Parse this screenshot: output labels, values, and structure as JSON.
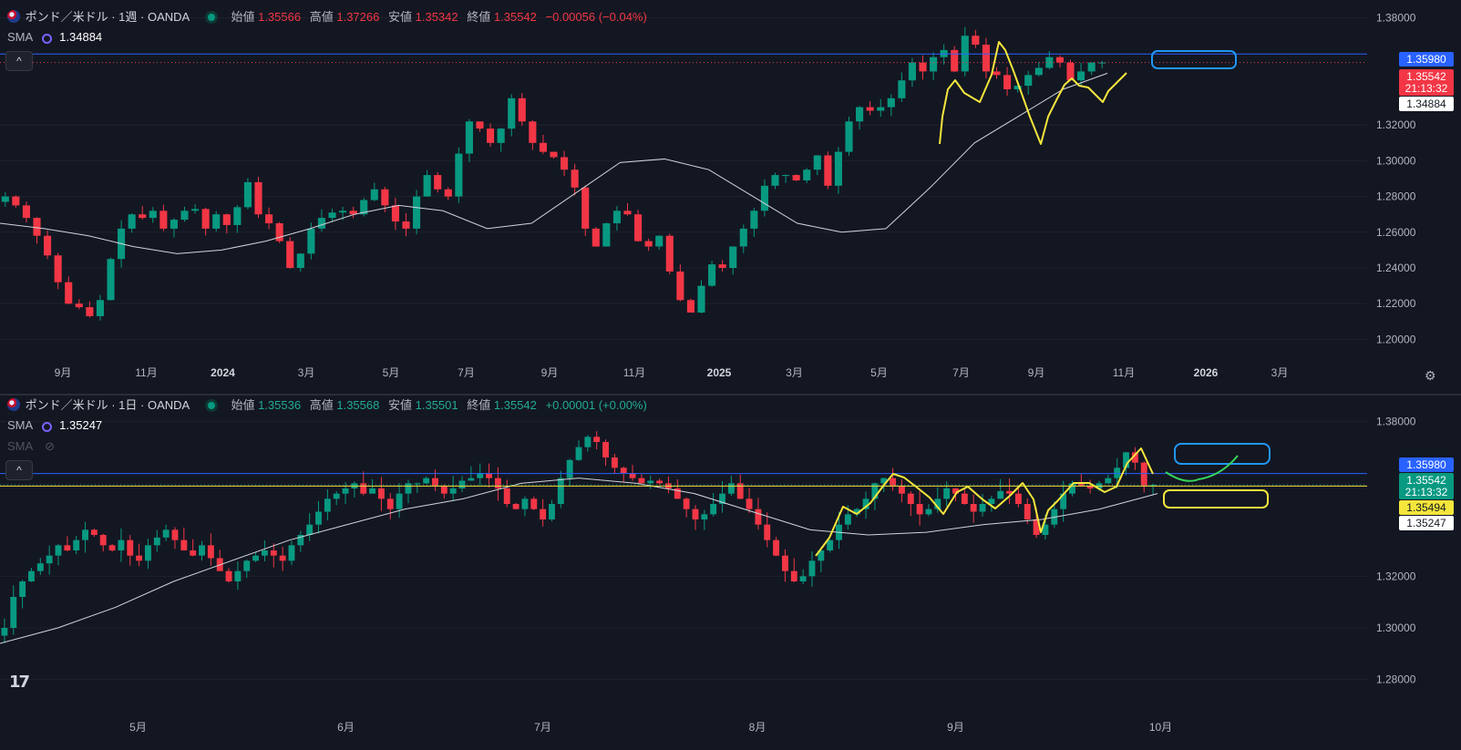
{
  "colors": {
    "up": "#089981",
    "down": "#f23645",
    "bg": "#131722",
    "grid": "#1e222d",
    "axis": "#b2b5be",
    "sma": "#d1d4dc",
    "yellowline": "#f0e23a",
    "blueline": "#2962ff",
    "bluebox": "#2196f3",
    "yellowbox": "#f5e63c",
    "greenline": "#36d35b"
  },
  "top": {
    "symbol": "ポンド／米ドル · 1週 · OANDA",
    "ohlc": {
      "open_k": "始値",
      "open": "1.35566",
      "high_k": "高値",
      "high": "1.37266",
      "low_k": "安値",
      "low": "1.35342",
      "close_k": "終値",
      "close": "1.35542",
      "change": "−0.00056 (−0.04%)"
    },
    "sma_label": "SMA",
    "sma_value": "1.34884",
    "collapse_icon": "^",
    "price_tags": [
      {
        "text": "1.35980",
        "bg": "#2962ff",
        "fg": "#ffffff"
      },
      {
        "text": "1.35542",
        "bg": "#f23645",
        "fg": "#ffffff"
      },
      {
        "text": "21:13:32",
        "bg": "#f23645",
        "fg": "#ffffff"
      },
      {
        "text": "1.34884",
        "bg": "#ffffff",
        "fg": "#131722"
      }
    ]
  },
  "bottom": {
    "symbol": "ポンド／米ドル · 1日 · OANDA",
    "ohlc": {
      "open_k": "始値",
      "open": "1.35536",
      "high_k": "高値",
      "high": "1.35568",
      "low_k": "安値",
      "low": "1.35501",
      "close_k": "終値",
      "close": "1.35542",
      "change": "+0.00001 (+0.00%)"
    },
    "sma_label": "SMA",
    "sma_value": "1.35247",
    "sma2_label": "SMA",
    "collapse_icon": "^",
    "price_tags": [
      {
        "text": "1.35980",
        "bg": "#2962ff",
        "fg": "#ffffff"
      },
      {
        "text": "1.35542",
        "bg": "#089981",
        "fg": "#ffffff"
      },
      {
        "text": "21:13:32",
        "bg": "#089981",
        "fg": "#ffffff"
      },
      {
        "text": "1.35494",
        "bg": "#f5e63c",
        "fg": "#131722"
      },
      {
        "text": "1.35247",
        "bg": "#ffffff",
        "fg": "#131722"
      }
    ]
  },
  "chart_data": [
    {
      "type": "line",
      "title": "ポンド／米ドル · 1週 · OANDA",
      "ylim": [
        1.19,
        1.39
      ],
      "y_ticks": [
        "1.38000",
        "1.32000",
        "1.30000",
        "1.28000",
        "1.26000",
        "1.24000",
        "1.22000",
        "1.20000"
      ],
      "y_tick_values": [
        1.38,
        1.32,
        1.3,
        1.28,
        1.26,
        1.24,
        1.22,
        1.2
      ],
      "x_ticks": [
        {
          "label": "9月",
          "t": 0.046
        },
        {
          "label": "11月",
          "t": 0.107
        },
        {
          "label": "2024",
          "t": 0.163,
          "bold": true
        },
        {
          "label": "3月",
          "t": 0.224
        },
        {
          "label": "5月",
          "t": 0.286
        },
        {
          "label": "7月",
          "t": 0.341
        },
        {
          "label": "9月",
          "t": 0.402
        },
        {
          "label": "11月",
          "t": 0.464
        },
        {
          "label": "2025",
          "t": 0.526,
          "bold": true
        },
        {
          "label": "3月",
          "t": 0.581
        },
        {
          "label": "5月",
          "t": 0.643
        },
        {
          "label": "7月",
          "t": 0.703
        },
        {
          "label": "9月",
          "t": 0.758
        },
        {
          "label": "11月",
          "t": 0.822
        },
        {
          "label": "2026",
          "t": 0.882,
          "bold": true
        },
        {
          "label": "3月",
          "t": 0.936
        }
      ],
      "close_series": [
        1.28,
        1.275,
        1.268,
        1.258,
        1.247,
        1.232,
        1.22,
        1.218,
        1.213,
        1.222,
        1.245,
        1.262,
        1.27,
        1.268,
        1.272,
        1.262,
        1.267,
        1.272,
        1.273,
        1.262,
        1.27,
        1.264,
        1.274,
        1.288,
        1.27,
        1.265,
        1.255,
        1.24,
        1.248,
        1.262,
        1.268,
        1.271,
        1.272,
        1.27,
        1.278,
        1.284,
        1.275,
        1.266,
        1.262,
        1.28,
        1.292,
        1.284,
        1.28,
        1.304,
        1.322,
        1.318,
        1.31,
        1.318,
        1.335,
        1.322,
        1.31,
        1.305,
        1.302,
        1.295,
        1.285,
        1.262,
        1.252,
        1.265,
        1.272,
        1.27,
        1.255,
        1.252,
        1.258,
        1.238,
        1.222,
        1.215,
        1.23,
        1.242,
        1.24,
        1.252,
        1.262,
        1.272,
        1.286,
        1.292,
        1.292,
        1.289,
        1.295,
        1.303,
        1.286,
        1.305,
        1.322,
        1.33,
        1.328,
        1.33,
        1.335,
        1.345,
        1.355,
        1.35,
        1.358,
        1.362,
        1.35,
        1.37,
        1.365,
        1.35,
        1.348,
        1.34,
        1.342,
        1.348,
        1.352,
        1.358,
        1.355,
        1.345,
        1.35,
        1.355,
        1.355
      ],
      "sma": [
        1.265,
        1.262,
        1.258,
        1.252,
        1.248,
        1.25,
        1.255,
        1.262,
        1.27,
        1.275,
        1.272,
        1.262,
        1.265,
        1.282,
        1.299,
        1.301,
        1.295,
        1.28,
        1.265,
        1.26,
        1.262,
        1.285,
        1.31,
        1.325,
        1.34,
        1.349
      ],
      "annotations": [
        {
          "type": "hline",
          "value": 1.3598,
          "label": "1.35980"
        }
      ]
    },
    {
      "type": "line",
      "title": "ポンド／米ドル · 1日 · OANDA",
      "ylim": [
        1.27,
        1.39
      ],
      "y_ticks": [
        "1.38000",
        "1.32000",
        "1.30000",
        "1.28000"
      ],
      "y_tick_values": [
        1.38,
        1.32,
        1.3,
        1.28
      ],
      "x_ticks": [
        {
          "label": "5月",
          "t": 0.101
        },
        {
          "label": "6月",
          "t": 0.253
        },
        {
          "label": "7月",
          "t": 0.397
        },
        {
          "label": "8月",
          "t": 0.554
        },
        {
          "label": "9月",
          "t": 0.699
        },
        {
          "label": "10月",
          "t": 0.849
        }
      ],
      "close_series": [
        1.3,
        1.312,
        1.318,
        1.322,
        1.325,
        1.328,
        1.332,
        1.33,
        1.334,
        1.338,
        1.336,
        1.332,
        1.33,
        1.334,
        1.328,
        1.326,
        1.332,
        1.335,
        1.338,
        1.334,
        1.33,
        1.328,
        1.332,
        1.327,
        1.322,
        1.318,
        1.322,
        1.326,
        1.328,
        1.33,
        1.328,
        1.326,
        1.332,
        1.336,
        1.34,
        1.345,
        1.35,
        1.352,
        1.354,
        1.356,
        1.352,
        1.354,
        1.35,
        1.346,
        1.352,
        1.356,
        1.356,
        1.358,
        1.355,
        1.352,
        1.354,
        1.357,
        1.358,
        1.36,
        1.358,
        1.354,
        1.348,
        1.346,
        1.35,
        1.346,
        1.342,
        1.348,
        1.358,
        1.365,
        1.37,
        1.374,
        1.372,
        1.366,
        1.362,
        1.36,
        1.358,
        1.356,
        1.357,
        1.356,
        1.354,
        1.35,
        1.346,
        1.342,
        1.344,
        1.348,
        1.352,
        1.356,
        1.35,
        1.346,
        1.34,
        1.334,
        1.328,
        1.322,
        1.318,
        1.32,
        1.326,
        1.33,
        1.334,
        1.34,
        1.344,
        1.346,
        1.35,
        1.356,
        1.358,
        1.355,
        1.352,
        1.348,
        1.344,
        1.346,
        1.35,
        1.354,
        1.352,
        1.348,
        1.345,
        1.348,
        1.35,
        1.353,
        1.352,
        1.348,
        1.342,
        1.336,
        1.34,
        1.346,
        1.352,
        1.356,
        1.355,
        1.354,
        1.356,
        1.358,
        1.362,
        1.368,
        1.364,
        1.355,
        1.3554
      ],
      "sma": [
        1.294,
        1.3,
        1.308,
        1.318,
        1.326,
        1.334,
        1.34,
        1.346,
        1.35,
        1.356,
        1.358,
        1.356,
        1.352,
        1.345,
        1.338,
        1.336,
        1.337,
        1.34,
        1.342,
        1.346,
        1.352
      ],
      "annotations": [
        {
          "type": "hline",
          "value": 1.3598,
          "label": "1.35980"
        },
        {
          "type": "hline",
          "value": 1.35494,
          "label": "1.35494"
        }
      ]
    }
  ]
}
